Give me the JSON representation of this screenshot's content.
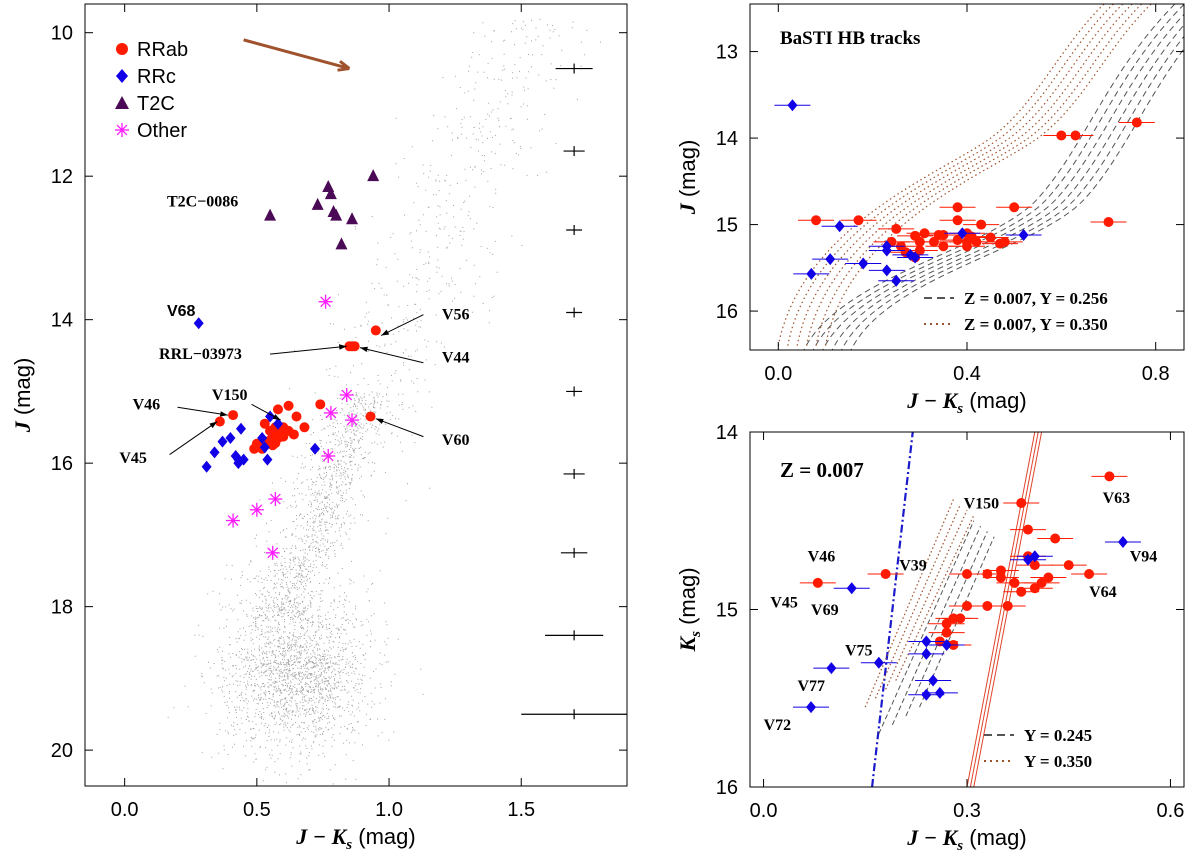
{
  "colors": {
    "rrab": "#ff1a00",
    "rrc": "#1200e6",
    "t2c": "#4b0a55",
    "other": "#ff1aff",
    "field": "#555555",
    "arrow": "#a0522d",
    "blueLine": "#1a1acc",
    "redLine": "#e0442a",
    "grey": "#555555"
  },
  "chart_data": [
    {
      "id": "cmd",
      "type": "scatter",
      "xlabel_main": "J − K",
      "xlabel_sub": "s",
      "xlabel_unit": " (mag)",
      "ylabel_main": "J",
      "ylabel_unit": " (mag)",
      "xlim": [
        -0.15,
        1.9
      ],
      "ylim": [
        20.5,
        9.6
      ],
      "xticks": [
        0.0,
        0.5,
        1.0,
        1.5
      ],
      "xtick_labels": [
        "0.0",
        "0.5",
        "1.0",
        "1.5"
      ],
      "yticks": [
        10,
        12,
        14,
        16,
        18,
        20
      ],
      "ytick_labels": [
        "10",
        "12",
        "14",
        "16",
        "18",
        "20"
      ],
      "legend": [
        {
          "label": "RRab",
          "marker": "circle",
          "color": "rrab"
        },
        {
          "label": "RRc",
          "marker": "diamond",
          "color": "rrc"
        },
        {
          "label": "T2C",
          "marker": "triangle",
          "color": "t2c"
        },
        {
          "label": "Other",
          "marker": "asterisk",
          "color": "other"
        }
      ],
      "reddening_arrow": {
        "from": [
          0.45,
          10.1
        ],
        "to": [
          0.85,
          10.5
        ]
      },
      "error_bars": [
        {
          "x": 1.7,
          "y": 10.5,
          "xerr": 0.07,
          "yerr": 0.06
        },
        {
          "x": 1.7,
          "y": 11.65,
          "xerr": 0.04,
          "yerr": 0.06
        },
        {
          "x": 1.7,
          "y": 12.75,
          "xerr": 0.03,
          "yerr": 0.06
        },
        {
          "x": 1.7,
          "y": 13.9,
          "xerr": 0.03,
          "yerr": 0.06
        },
        {
          "x": 1.7,
          "y": 15.0,
          "xerr": 0.03,
          "yerr": 0.06
        },
        {
          "x": 1.7,
          "y": 16.15,
          "xerr": 0.04,
          "yerr": 0.06
        },
        {
          "x": 1.7,
          "y": 17.25,
          "xerr": 0.05,
          "yerr": 0.06
        },
        {
          "x": 1.7,
          "y": 18.4,
          "xerr": 0.11,
          "yerr": 0.06
        },
        {
          "x": 1.7,
          "y": 19.5,
          "xerr": 0.2,
          "yerr": 0.1
        }
      ],
      "rrab": [
        [
          0.85,
          14.37
        ],
        [
          0.87,
          14.37
        ],
        [
          0.86,
          14.37
        ],
        [
          0.95,
          14.15
        ],
        [
          0.93,
          15.35
        ],
        [
          0.41,
          15.33
        ],
        [
          0.36,
          15.42
        ],
        [
          0.74,
          15.18
        ],
        [
          0.62,
          15.2
        ],
        [
          0.58,
          15.25
        ],
        [
          0.65,
          15.35
        ],
        [
          0.53,
          15.45
        ],
        [
          0.57,
          15.5
        ],
        [
          0.6,
          15.5
        ],
        [
          0.55,
          15.55
        ],
        [
          0.56,
          15.6
        ],
        [
          0.59,
          15.6
        ],
        [
          0.62,
          15.55
        ],
        [
          0.53,
          15.7
        ],
        [
          0.55,
          15.68
        ],
        [
          0.58,
          15.65
        ],
        [
          0.5,
          15.73
        ],
        [
          0.52,
          15.75
        ],
        [
          0.56,
          15.75
        ],
        [
          0.6,
          15.63
        ],
        [
          0.49,
          15.8
        ],
        [
          0.52,
          15.8
        ],
        [
          0.57,
          15.72
        ],
        [
          0.64,
          15.6
        ],
        [
          0.68,
          15.5
        ]
      ],
      "rrc": [
        [
          0.28,
          14.05
        ],
        [
          0.31,
          16.05
        ],
        [
          0.34,
          15.85
        ],
        [
          0.37,
          15.7
        ],
        [
          0.4,
          15.65
        ],
        [
          0.42,
          15.9
        ],
        [
          0.43,
          16.0
        ],
        [
          0.45,
          15.95
        ],
        [
          0.44,
          15.52
        ],
        [
          0.54,
          15.95
        ],
        [
          0.53,
          15.78
        ],
        [
          0.55,
          15.35
        ],
        [
          0.58,
          15.45
        ],
        [
          0.72,
          15.8
        ],
        [
          0.43,
          15.95
        ],
        [
          0.52,
          15.65
        ]
      ],
      "t2c": [
        [
          0.55,
          12.55
        ],
        [
          0.73,
          12.4
        ],
        [
          0.77,
          12.15
        ],
        [
          0.78,
          12.25
        ],
        [
          0.79,
          12.5
        ],
        [
          0.8,
          12.55
        ],
        [
          0.86,
          12.6
        ],
        [
          0.82,
          12.95
        ],
        [
          0.94,
          12.0
        ]
      ],
      "other": [
        [
          0.76,
          13.75
        ],
        [
          0.41,
          16.8
        ],
        [
          0.5,
          16.65
        ],
        [
          0.57,
          16.5
        ],
        [
          0.56,
          17.25
        ],
        [
          0.77,
          15.9
        ],
        [
          0.78,
          15.3
        ],
        [
          0.84,
          15.05
        ],
        [
          0.86,
          15.4
        ]
      ],
      "labels": [
        {
          "text": "T2C−0086",
          "x": 0.16,
          "y": 12.42,
          "anchor": "start"
        },
        {
          "text": "V68",
          "x": 0.16,
          "y": 13.95,
          "anchor": "start"
        },
        {
          "text": "V56",
          "x": 1.2,
          "y": 14.0,
          "anchor": "start"
        },
        {
          "text": "RRL−03973",
          "x": 0.13,
          "y": 14.55,
          "anchor": "start"
        },
        {
          "text": "V44",
          "x": 1.2,
          "y": 14.6,
          "anchor": "start"
        },
        {
          "text": "V150",
          "x": 0.33,
          "y": 15.12,
          "anchor": "start"
        },
        {
          "text": "V46",
          "x": 0.03,
          "y": 15.25,
          "anchor": "start"
        },
        {
          "text": "V45",
          "x": -0.02,
          "y": 16.0,
          "anchor": "start"
        },
        {
          "text": "V60",
          "x": 1.2,
          "y": 15.75,
          "anchor": "start"
        }
      ],
      "pointers": [
        {
          "from": [
            1.13,
            13.93
          ],
          "to": [
            0.97,
            14.22
          ]
        },
        {
          "from": [
            0.55,
            14.48
          ],
          "to": [
            0.84,
            14.37
          ]
        },
        {
          "from": [
            1.13,
            14.6
          ],
          "to": [
            0.89,
            14.39
          ]
        },
        {
          "from": [
            0.48,
            15.18
          ],
          "to": [
            0.59,
            15.4
          ]
        },
        {
          "from": [
            0.2,
            15.22
          ],
          "to": [
            0.39,
            15.33
          ]
        },
        {
          "from": [
            0.17,
            15.88
          ],
          "to": [
            0.35,
            15.42
          ]
        },
        {
          "from": [
            1.13,
            15.63
          ],
          "to": [
            0.95,
            15.38
          ]
        }
      ]
    },
    {
      "id": "hb_j",
      "type": "scatter",
      "title": "BaSTI HB tracks",
      "xlabel_main": "J − K",
      "xlabel_sub": "s",
      "xlabel_unit": " (mag)",
      "ylabel_main": "J",
      "ylabel_unit": " (mag)",
      "xlim": [
        -0.06,
        0.86
      ],
      "ylim": [
        16.45,
        12.45
      ],
      "xticks": [
        0.0,
        0.4,
        0.8
      ],
      "xtick_labels": [
        "0.0",
        "0.4",
        "0.8"
      ],
      "yticks": [
        13,
        14,
        15,
        16
      ],
      "ytick_labels": [
        "13",
        "14",
        "15",
        "16"
      ],
      "legend": [
        {
          "label": "Z = 0.007, Y = 0.256",
          "style": "dashed",
          "color": "grey"
        },
        {
          "label": "Z = 0.007, Y = 0.350",
          "style": "dotted",
          "color": "arrow"
        }
      ],
      "rrab": [
        [
          0.08,
          14.95
        ],
        [
          0.17,
          14.95
        ],
        [
          0.25,
          15.05
        ],
        [
          0.31,
          15.1
        ],
        [
          0.34,
          15.12
        ],
        [
          0.38,
          14.8
        ],
        [
          0.43,
          15.0
        ],
        [
          0.5,
          14.8
        ],
        [
          0.6,
          13.97
        ],
        [
          0.63,
          13.97
        ],
        [
          0.7,
          14.97
        ],
        [
          0.76,
          13.82
        ],
        [
          0.29,
          15.13
        ],
        [
          0.3,
          15.2
        ],
        [
          0.33,
          15.2
        ],
        [
          0.35,
          15.12
        ],
        [
          0.38,
          15.18
        ],
        [
          0.4,
          15.2
        ],
        [
          0.4,
          15.25
        ],
        [
          0.42,
          15.2
        ],
        [
          0.45,
          15.15
        ],
        [
          0.47,
          15.22
        ],
        [
          0.48,
          15.2
        ],
        [
          0.4,
          15.1
        ],
        [
          0.41,
          15.14
        ],
        [
          0.24,
          15.2
        ],
        [
          0.26,
          15.25
        ],
        [
          0.27,
          15.32
        ],
        [
          0.29,
          15.38
        ],
        [
          0.3,
          15.3
        ],
        [
          0.38,
          14.95
        ],
        [
          0.35,
          15.25
        ]
      ],
      "rrc": [
        [
          0.03,
          13.62
        ],
        [
          0.07,
          15.57
        ],
        [
          0.13,
          15.02
        ],
        [
          0.11,
          15.4
        ],
        [
          0.18,
          15.45
        ],
        [
          0.23,
          15.3
        ],
        [
          0.23,
          15.53
        ],
        [
          0.25,
          15.65
        ],
        [
          0.28,
          15.35
        ],
        [
          0.39,
          15.1
        ],
        [
          0.52,
          15.12
        ],
        [
          0.23,
          15.25
        ],
        [
          0.29,
          15.38
        ]
      ]
    },
    {
      "id": "hb_k",
      "type": "scatter",
      "title": "Z = 0.007",
      "xlabel_main": "J − K",
      "xlabel_sub": "s",
      "xlabel_unit": " (mag)",
      "ylabel_main": "K",
      "ylabel_sub": "s",
      "ylabel_unit": " (mag)",
      "xlim": [
        -0.02,
        0.62
      ],
      "ylim": [
        16.0,
        14.0
      ],
      "xticks": [
        0.0,
        0.3,
        0.6
      ],
      "xtick_labels": [
        "0.0",
        "0.3",
        "0.6"
      ],
      "yticks": [
        14,
        15,
        16
      ],
      "ytick_labels": [
        "14",
        "",
        "16"
      ],
      "ytick_labels_mid": [
        "15"
      ],
      "legend": [
        {
          "label": "Y = 0.245",
          "style": "dashed",
          "color": "grey"
        },
        {
          "label": "Y = 0.350",
          "style": "dotted",
          "color": "arrow"
        }
      ],
      "rrab": [
        [
          0.51,
          14.25
        ],
        [
          0.38,
          14.4
        ],
        [
          0.39,
          14.55
        ],
        [
          0.43,
          14.6
        ],
        [
          0.45,
          14.75
        ],
        [
          0.48,
          14.8
        ],
        [
          0.3,
          14.8
        ],
        [
          0.33,
          14.8
        ],
        [
          0.35,
          14.78
        ],
        [
          0.35,
          14.82
        ],
        [
          0.37,
          14.85
        ],
        [
          0.39,
          14.7
        ],
        [
          0.4,
          14.75
        ],
        [
          0.4,
          14.88
        ],
        [
          0.41,
          14.85
        ],
        [
          0.42,
          14.82
        ],
        [
          0.38,
          14.9
        ],
        [
          0.36,
          14.98
        ],
        [
          0.33,
          14.98
        ],
        [
          0.3,
          14.98
        ],
        [
          0.29,
          15.05
        ],
        [
          0.28,
          15.05
        ],
        [
          0.27,
          15.08
        ],
        [
          0.27,
          15.13
        ],
        [
          0.28,
          15.2
        ],
        [
          0.26,
          15.18
        ],
        [
          0.08,
          14.85
        ],
        [
          0.18,
          14.8
        ]
      ],
      "rrc": [
        [
          0.53,
          14.62
        ],
        [
          0.4,
          14.7
        ],
        [
          0.39,
          14.72
        ],
        [
          0.13,
          14.88
        ],
        [
          0.27,
          15.2
        ],
        [
          0.24,
          15.18
        ],
        [
          0.17,
          15.3
        ],
        [
          0.1,
          15.33
        ],
        [
          0.24,
          15.25
        ],
        [
          0.25,
          15.4
        ],
        [
          0.07,
          15.55
        ],
        [
          0.24,
          15.48
        ],
        [
          0.26,
          15.47
        ]
      ],
      "labels": [
        {
          "text": "V150",
          "x": 0.295,
          "y": 14.43,
          "anchor": "start"
        },
        {
          "text": "V63",
          "x": 0.5,
          "y": 14.4,
          "anchor": "start"
        },
        {
          "text": "V46",
          "x": 0.065,
          "y": 14.73,
          "anchor": "start"
        },
        {
          "text": "V39",
          "x": 0.2,
          "y": 14.78,
          "anchor": "start"
        },
        {
          "text": "V94",
          "x": 0.54,
          "y": 14.73,
          "anchor": "start"
        },
        {
          "text": "V64",
          "x": 0.48,
          "y": 14.93,
          "anchor": "start"
        },
        {
          "text": "V45",
          "x": 0.01,
          "y": 14.99,
          "anchor": "start"
        },
        {
          "text": "V69",
          "x": 0.07,
          "y": 15.03,
          "anchor": "start"
        },
        {
          "text": "V75",
          "x": 0.12,
          "y": 15.26,
          "anchor": "start"
        },
        {
          "text": "V77",
          "x": 0.05,
          "y": 15.46,
          "anchor": "start"
        },
        {
          "text": "V72",
          "x": 0.0,
          "y": 15.68,
          "anchor": "start"
        }
      ]
    }
  ]
}
